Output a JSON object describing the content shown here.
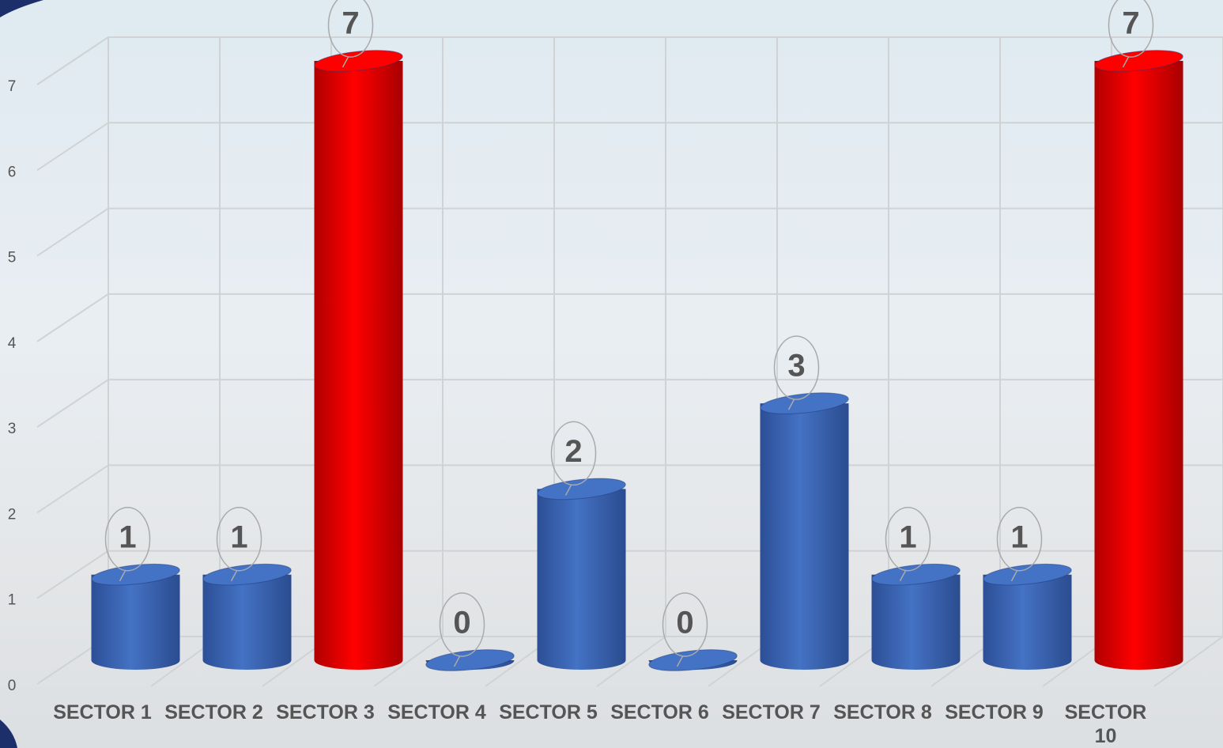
{
  "chart_data": {
    "type": "bar",
    "categories": [
      "SECTOR 1",
      "SECTOR 2",
      "SECTOR 3",
      "SECTOR 4",
      "SECTOR 5",
      "SECTOR 6",
      "SECTOR 7",
      "SECTOR 8",
      "SECTOR 9",
      "SECTOR 10"
    ],
    "values": [
      1,
      1,
      7,
      0,
      2,
      0,
      3,
      1,
      1,
      7
    ],
    "colors": [
      "#4472c4",
      "#4472c4",
      "#ff0000",
      "#4472c4",
      "#4472c4",
      "#4472c4",
      "#4472c4",
      "#4472c4",
      "#4472c4",
      "#ff0000"
    ],
    "ylim": [
      0,
      7
    ],
    "yticks": [
      0,
      1,
      2,
      3,
      4,
      5,
      6,
      7
    ],
    "grid": true
  }
}
